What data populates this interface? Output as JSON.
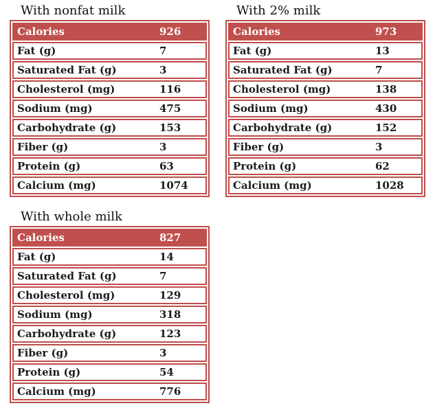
{
  "styles": {
    "header_bg": "#c0504d",
    "border_color": "#be4b48",
    "header_text_color": "#ffffff",
    "label_text_color": "#1b1b1b"
  },
  "tables": [
    {
      "title": "With nonfat milk",
      "header": {
        "label": "Calories",
        "value": "926"
      },
      "rows": [
        {
          "label": "Fat (g)",
          "value": "7"
        },
        {
          "label": "Saturated Fat (g)",
          "value": "3"
        },
        {
          "label": "Cholesterol (mg)",
          "value": "116"
        },
        {
          "label": "Sodium (mg)",
          "value": "475"
        },
        {
          "label": "Carbohydrate (g)",
          "value": "153"
        },
        {
          "label": "Fiber (g)",
          "value": "3"
        },
        {
          "label": "Protein (g)",
          "value": "63"
        },
        {
          "label": "Calcium (mg)",
          "value": "1074"
        }
      ]
    },
    {
      "title": "With 2% milk",
      "header": {
        "label": "Calories",
        "value": "973"
      },
      "rows": [
        {
          "label": "Fat (g)",
          "value": "13"
        },
        {
          "label": "Saturated Fat (g)",
          "value": "7"
        },
        {
          "label": "Cholesterol (mg)",
          "value": "138"
        },
        {
          "label": "Sodium (mg)",
          "value": "430"
        },
        {
          "label": "Carbohydrate (g)",
          "value": "152"
        },
        {
          "label": "Fiber (g)",
          "value": "3"
        },
        {
          "label": "Protein (g)",
          "value": "62"
        },
        {
          "label": "Calcium (mg)",
          "value": "1028"
        }
      ]
    },
    {
      "title": "With whole milk",
      "header": {
        "label": "Calories",
        "value": "827"
      },
      "rows": [
        {
          "label": "Fat (g)",
          "value": "14"
        },
        {
          "label": "Saturated Fat (g)",
          "value": "7"
        },
        {
          "label": "Cholesterol (mg)",
          "value": "129"
        },
        {
          "label": "Sodium (mg)",
          "value": "318"
        },
        {
          "label": "Carbohydrate (g)",
          "value": "123"
        },
        {
          "label": "Fiber (g)",
          "value": "3"
        },
        {
          "label": "Protein (g)",
          "value": "54"
        },
        {
          "label": "Calcium (mg)",
          "value": "776"
        }
      ]
    }
  ]
}
